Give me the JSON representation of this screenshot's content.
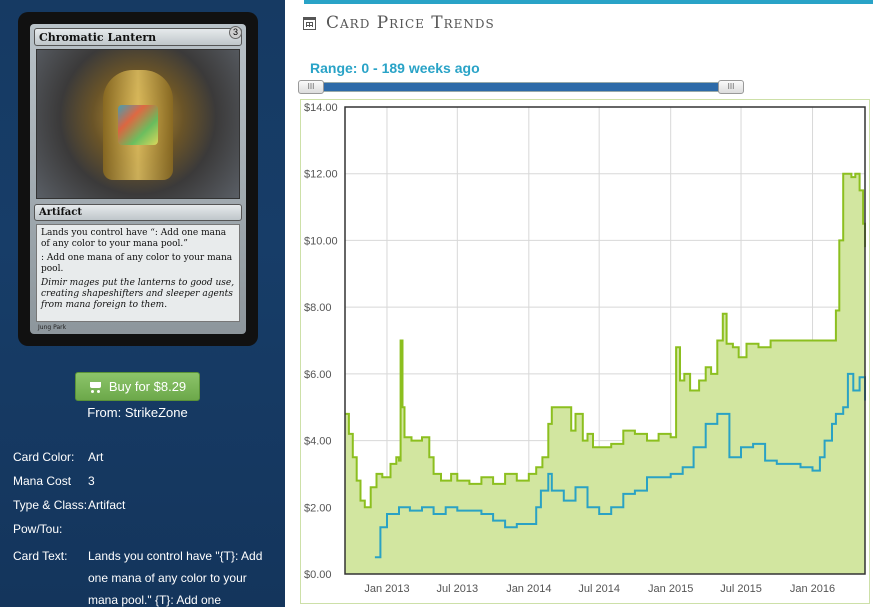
{
  "card": {
    "name": "Chromatic Lantern",
    "cost": "3",
    "type_line": "Artifact",
    "rules_text_1": "Lands you control have “: Add one mana of any color to your mana pool.”",
    "rules_text_2": ": Add one mana of any color to your mana pool.",
    "flavor_text": "Dimir mages put the lanterns to good use, creating shapeshifters and sleeper agents from mana foreign to them.",
    "artist": "Jung Park"
  },
  "buy": {
    "label": "Buy for $8.29",
    "vendor": "From: StrikeZone"
  },
  "details": [
    {
      "label": "Card Color:",
      "value": "Art"
    },
    {
      "label": "Mana Cost",
      "value": "3"
    },
    {
      "label": "Type & Class:",
      "value": "Artifact"
    },
    {
      "label": "Pow/Tou:",
      "value": ""
    },
    {
      "label": "Card Text:",
      "value": "Lands you control have \"{T}: Add one mana of any color to your mana pool.\" {T}: Add one"
    }
  ],
  "header": {
    "title": "Card Price Trends"
  },
  "range": {
    "label": "Range: 0 - 189 weeks ago",
    "handle_left": "III",
    "handle_right": "III",
    "start_weeks": 189,
    "end_weeks": 0
  },
  "colors": {
    "accent": "#29a3c7",
    "green_line": "#8cbf1f",
    "green_fill": "#d2e6a0",
    "blue_line": "#2aa2c4",
    "buy_button": "#78b454"
  },
  "chart_data": {
    "type": "line",
    "title": "",
    "xlabel": "",
    "ylabel": "",
    "ylim": [
      0,
      14
    ],
    "xlim": [
      "2012-09-15",
      "2016-05-15"
    ],
    "y_ticks": [
      "$0.00",
      "$2.00",
      "$4.00",
      "$6.00",
      "$8.00",
      "$10.00",
      "$12.00",
      "$14.00"
    ],
    "y_tick_values": [
      0,
      2,
      4,
      6,
      8,
      10,
      12,
      14
    ],
    "x_ticks": [
      "Jan 2013",
      "Jul 2013",
      "Jan 2014",
      "Jul 2014",
      "Jan 2015",
      "Jul 2015",
      "Jan 2016"
    ],
    "x_tick_dates": [
      "2013-01-01",
      "2013-07-01",
      "2014-01-01",
      "2014-07-01",
      "2015-01-01",
      "2015-07-01",
      "2016-01-01"
    ],
    "grid": true,
    "legend": "none",
    "series": [
      {
        "style": "area",
        "x": [
          "2012-09-15",
          "2012-09-25",
          "2012-10-05",
          "2012-10-15",
          "2012-10-25",
          "2012-11-05",
          "2012-11-20",
          "2012-12-05",
          "2012-12-20",
          "2013-01-10",
          "2013-01-25",
          "2013-02-01",
          "2013-02-05",
          "2013-02-10",
          "2013-02-15",
          "2013-03-05",
          "2013-04-01",
          "2013-04-20",
          "2013-05-01",
          "2013-05-20",
          "2013-06-15",
          "2013-07-01",
          "2013-08-01",
          "2013-09-01",
          "2013-10-01",
          "2013-11-01",
          "2013-12-01",
          "2014-01-01",
          "2014-01-20",
          "2014-02-05",
          "2014-02-20",
          "2014-03-01",
          "2014-04-01",
          "2014-04-20",
          "2014-05-01",
          "2014-05-20",
          "2014-06-01",
          "2014-06-15",
          "2014-07-01",
          "2014-08-01",
          "2014-09-01",
          "2014-10-01",
          "2014-11-01",
          "2014-12-01",
          "2015-01-01",
          "2015-01-15",
          "2015-01-25",
          "2015-02-05",
          "2015-02-20",
          "2015-03-15",
          "2015-04-01",
          "2015-04-15",
          "2015-05-01",
          "2015-05-15",
          "2015-05-25",
          "2015-06-10",
          "2015-06-25",
          "2015-07-15",
          "2015-08-15",
          "2015-09-15",
          "2015-10-15",
          "2015-11-15",
          "2015-12-15",
          "2016-01-01",
          "2016-01-10",
          "2016-01-20",
          "2016-02-01",
          "2016-02-10",
          "2016-02-20",
          "2016-03-01",
          "2016-03-10",
          "2016-03-20",
          "2016-04-01",
          "2016-04-10",
          "2016-04-20",
          "2016-05-01",
          "2016-05-10",
          "2016-05-15"
        ],
        "values": [
          4.8,
          4.2,
          3.5,
          2.8,
          2.2,
          2.0,
          2.6,
          3.0,
          2.9,
          3.3,
          3.5,
          3.4,
          7.0,
          5.0,
          4.1,
          4.0,
          4.1,
          3.5,
          3.0,
          2.8,
          3.0,
          2.8,
          2.7,
          2.9,
          2.7,
          3.0,
          2.8,
          3.0,
          3.2,
          3.5,
          4.5,
          5.0,
          5.0,
          4.3,
          4.8,
          4.0,
          4.2,
          3.8,
          3.8,
          3.9,
          4.3,
          4.2,
          4.0,
          4.2,
          4.1,
          6.8,
          5.8,
          6.0,
          5.5,
          5.8,
          6.2,
          6.0,
          7.0,
          7.8,
          6.9,
          6.8,
          6.5,
          6.9,
          6.8,
          7.0,
          7.0,
          7.0,
          7.0,
          7.0,
          7.0,
          7.0,
          7.0,
          7.0,
          7.0,
          7.9,
          10.0,
          12.0,
          12.0,
          11.9,
          12.0,
          11.5,
          10.5,
          9.8
        ]
      },
      {
        "style": "line",
        "x": [
          "2012-12-01",
          "2012-12-15",
          "2013-01-01",
          "2013-02-01",
          "2013-03-01",
          "2013-04-01",
          "2013-05-01",
          "2013-06-01",
          "2013-07-01",
          "2013-08-01",
          "2013-09-01",
          "2013-10-01",
          "2013-11-01",
          "2013-12-01",
          "2014-01-01",
          "2014-01-20",
          "2014-02-01",
          "2014-02-20",
          "2014-03-01",
          "2014-04-01",
          "2014-05-01",
          "2014-06-01",
          "2014-07-01",
          "2014-08-01",
          "2014-09-01",
          "2014-10-01",
          "2014-11-01",
          "2014-12-01",
          "2015-01-01",
          "2015-02-01",
          "2015-03-01",
          "2015-04-01",
          "2015-05-01",
          "2015-06-01",
          "2015-07-01",
          "2015-08-01",
          "2015-09-01",
          "2015-10-01",
          "2015-11-01",
          "2015-12-01",
          "2016-01-01",
          "2016-01-20",
          "2016-02-01",
          "2016-02-20",
          "2016-03-01",
          "2016-03-20",
          "2016-04-01",
          "2016-04-15",
          "2016-05-01",
          "2016-05-15"
        ],
        "values": [
          0.5,
          1.4,
          1.8,
          2.0,
          1.9,
          2.0,
          1.8,
          2.0,
          1.9,
          1.9,
          1.8,
          1.6,
          1.4,
          1.5,
          1.5,
          2.0,
          2.5,
          3.0,
          2.5,
          2.2,
          2.6,
          2.0,
          1.8,
          2.0,
          2.4,
          2.5,
          2.9,
          2.9,
          3.0,
          3.2,
          3.8,
          4.5,
          4.8,
          3.5,
          3.8,
          3.9,
          3.4,
          3.3,
          3.3,
          3.2,
          3.1,
          3.5,
          4.0,
          4.5,
          4.8,
          5.0,
          6.0,
          5.5,
          5.9,
          5.2
        ]
      }
    ]
  }
}
